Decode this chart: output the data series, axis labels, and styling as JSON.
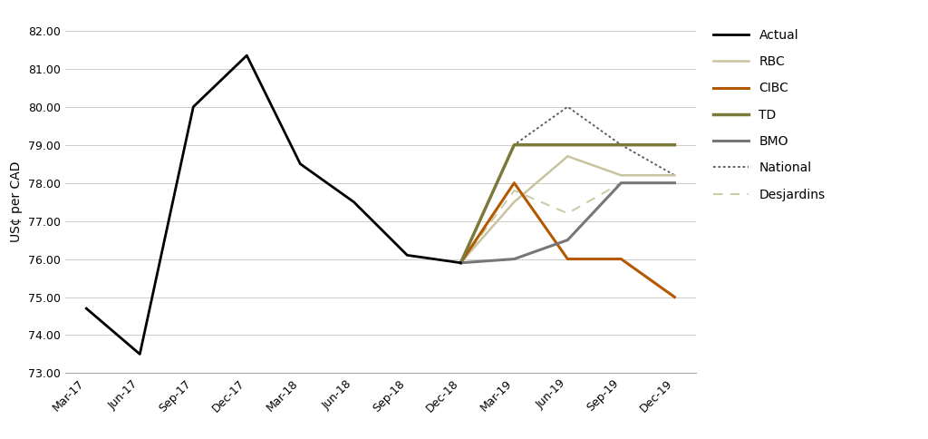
{
  "ylabel": "US¢ per CAD",
  "background_color": "#ffffff",
  "ylim": [
    73.0,
    82.0
  ],
  "yticks": [
    73.0,
    74.0,
    75.0,
    76.0,
    77.0,
    78.0,
    79.0,
    80.0,
    81.0,
    82.0
  ],
  "xtick_labels": [
    "Mar-17",
    "Jun-17",
    "Sep-17",
    "Dec-17",
    "Mar-18",
    "Jun-18",
    "Sep-18",
    "Dec-18",
    "Mar-19",
    "Jun-19",
    "Sep-19",
    "Dec-19"
  ],
  "actual_x": [
    0,
    1,
    2,
    3,
    4,
    5,
    6,
    7
  ],
  "actual_y": [
    74.7,
    73.5,
    80.0,
    81.35,
    78.5,
    77.5,
    76.1,
    75.9
  ],
  "rbc_x": [
    7,
    8,
    9,
    10,
    11
  ],
  "rbc_y": [
    75.9,
    77.5,
    78.7,
    78.2,
    78.2
  ],
  "cibc_x": [
    7,
    8,
    9,
    10,
    11
  ],
  "cibc_y": [
    75.9,
    78.0,
    76.0,
    76.0,
    75.0
  ],
  "td_x": [
    7,
    8,
    9,
    10,
    11
  ],
  "td_y": [
    75.9,
    79.0,
    79.0,
    79.0,
    79.0
  ],
  "bmo_x": [
    7,
    8,
    9,
    10,
    11
  ],
  "bmo_y": [
    75.9,
    76.0,
    76.5,
    78.0,
    78.0
  ],
  "national_x": [
    7,
    8,
    9,
    10,
    11
  ],
  "national_y": [
    75.9,
    79.0,
    80.0,
    79.0,
    78.2
  ],
  "desjardins_x": [
    7,
    8,
    9,
    10,
    11
  ],
  "desjardins_y": [
    75.9,
    77.8,
    77.2,
    78.0,
    78.0
  ],
  "actual_color": "#000000",
  "rbc_color": "#c8c4a0",
  "cibc_color": "#b35900",
  "td_color": "#7c7a3a",
  "bmo_color": "#777777",
  "national_color": "#555555",
  "desjardins_color": "#ccccaa"
}
